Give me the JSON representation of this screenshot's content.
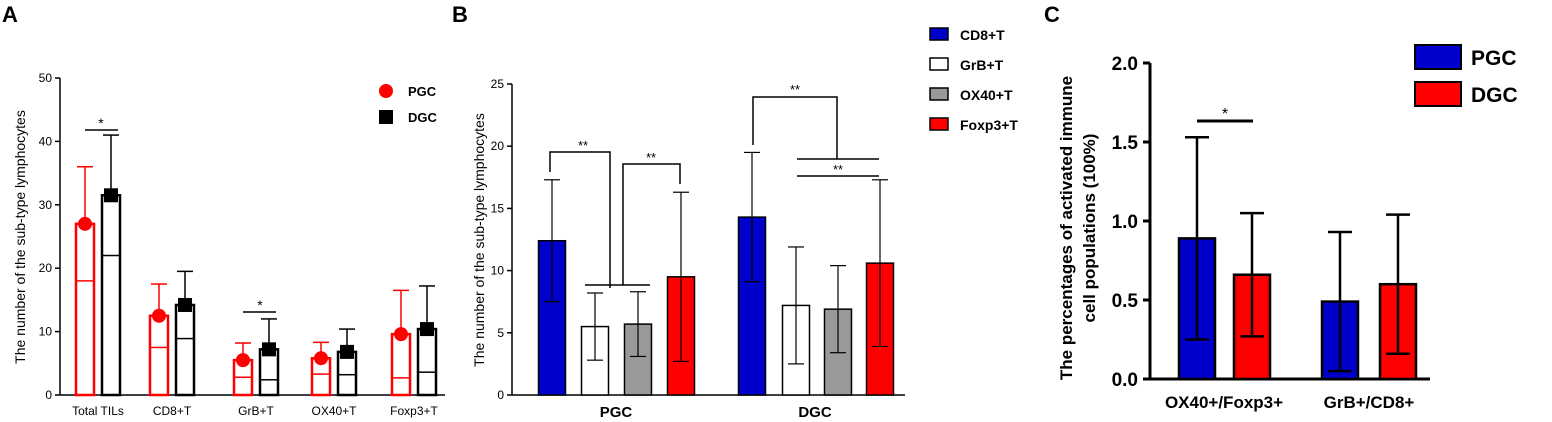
{
  "colors": {
    "pgc": "#ff0000",
    "dgc": "#000000",
    "cd8": "#0000cc",
    "grb": "#ffffff",
    "ox40": "#999999",
    "foxp3": "#ff0000"
  },
  "chart_data": [
    {
      "panel": "A",
      "type": "bar",
      "ylabel": "The number of the sub-type lymphocytes",
      "ylim": [
        0,
        50
      ],
      "yticks": [
        "0",
        "10",
        "20",
        "30",
        "40",
        "50"
      ],
      "categories": [
        "Total TILs",
        "CD8+T",
        "GrB+T",
        "OX40+T",
        "Foxp3+T"
      ],
      "series": [
        {
          "name": "PGC",
          "values": [
            27,
            12.5,
            5.5,
            5.8,
            9.6
          ],
          "errors": [
            9,
            5,
            2.7,
            2.5,
            6.9
          ]
        },
        {
          "name": "DGC",
          "values": [
            31.5,
            14.2,
            7.2,
            6.8,
            10.4
          ],
          "errors": [
            9.5,
            5.3,
            4.8,
            3.6,
            6.8
          ]
        }
      ],
      "legend": [
        "PGC",
        "DGC"
      ],
      "annotations": [
        {
          "label": "*",
          "category": "Total TILs"
        },
        {
          "label": "*",
          "category": "GrB+T"
        }
      ]
    },
    {
      "panel": "B",
      "type": "bar",
      "ylabel": "The number of the sub-type lymphocytes",
      "ylim": [
        0,
        25
      ],
      "yticks": [
        "0",
        "5",
        "10",
        "15",
        "20",
        "25"
      ],
      "categories": [
        "PGC",
        "DGC"
      ],
      "series": [
        {
          "name": "CD8+T",
          "values": [
            12.4,
            14.3
          ],
          "errors": [
            4.9,
            5.2
          ]
        },
        {
          "name": "GrB+T",
          "values": [
            5.5,
            7.2
          ],
          "errors": [
            2.7,
            4.7
          ]
        },
        {
          "name": "OX40+T",
          "values": [
            5.7,
            6.9
          ],
          "errors": [
            2.6,
            3.5
          ]
        },
        {
          "name": "Foxp3+T",
          "values": [
            9.5,
            10.6
          ],
          "errors": [
            6.8,
            6.7
          ]
        }
      ],
      "legend": [
        "CD8+T",
        "GrB+T",
        "OX40+T",
        "Foxp3+T"
      ],
      "annotations": [
        "**",
        "**",
        "**",
        "**"
      ]
    },
    {
      "panel": "C",
      "type": "bar",
      "ylabel_line1": "The percentages of activated immune",
      "ylabel_line2": "cell populations  (100%)",
      "ylim": [
        0,
        2.0
      ],
      "yticks": [
        "0.0",
        "0.5",
        "1.0",
        "1.5",
        "2.0"
      ],
      "categories": [
        "OX40+/Foxp3+",
        "GrB+/CD8+"
      ],
      "series": [
        {
          "name": "PGC",
          "values": [
            0.89,
            0.49
          ],
          "errors": [
            0.64,
            0.44
          ]
        },
        {
          "name": "DGC",
          "values": [
            0.66,
            0.6
          ],
          "errors": [
            0.39,
            0.44
          ]
        }
      ],
      "legend": [
        "PGC",
        "DGC"
      ],
      "annotations": [
        "*"
      ]
    }
  ]
}
